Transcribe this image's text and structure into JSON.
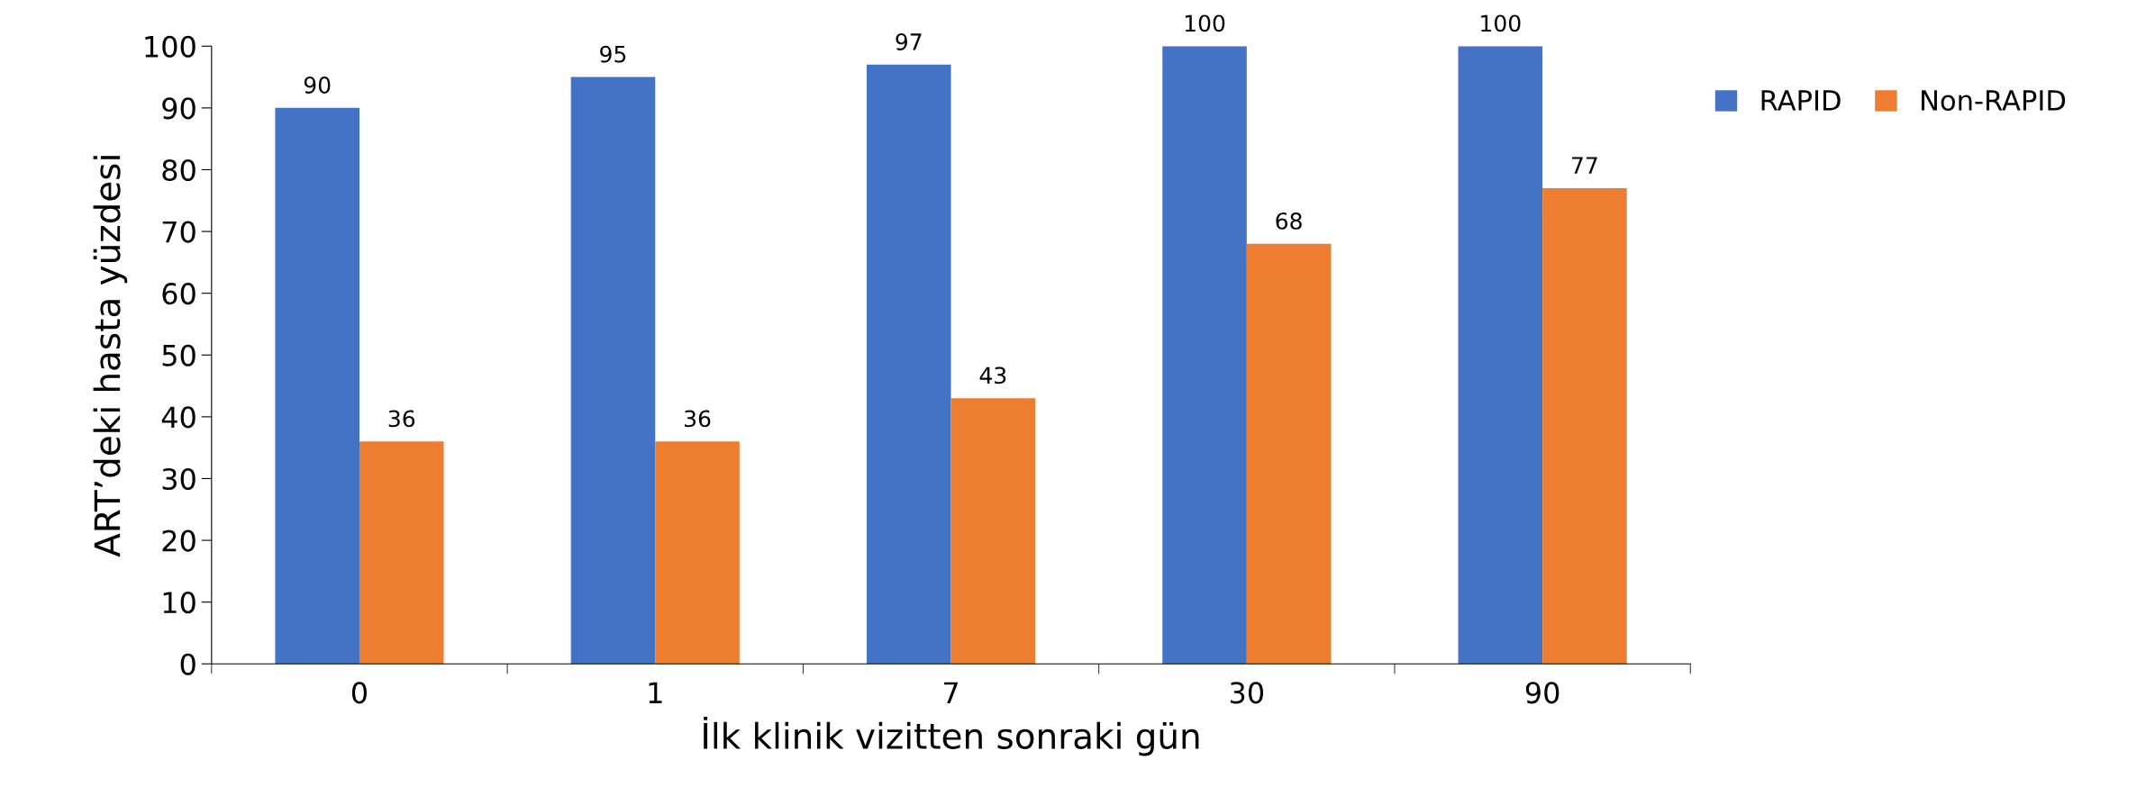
{
  "chart_data": {
    "type": "bar",
    "xlabel": "İlk klinik vizitten sonraki gün",
    "ylabel": "ART’deki hasta yüzdesi",
    "categories": [
      "0",
      "1",
      "7",
      "30",
      "90"
    ],
    "series": [
      {
        "name": "RAPID",
        "color": "#4472c4",
        "values": [
          90,
          95,
          97,
          100,
          100
        ]
      },
      {
        "name": "Non-RAPID",
        "color": "#ed7d31",
        "values": [
          36,
          36,
          43,
          68,
          77
        ]
      }
    ],
    "ylim": [
      0,
      100
    ],
    "yticks": [
      0,
      10,
      20,
      30,
      40,
      50,
      60,
      70,
      80,
      90,
      100
    ],
    "grid": false,
    "legend": "top right",
    "data_labels": true
  }
}
